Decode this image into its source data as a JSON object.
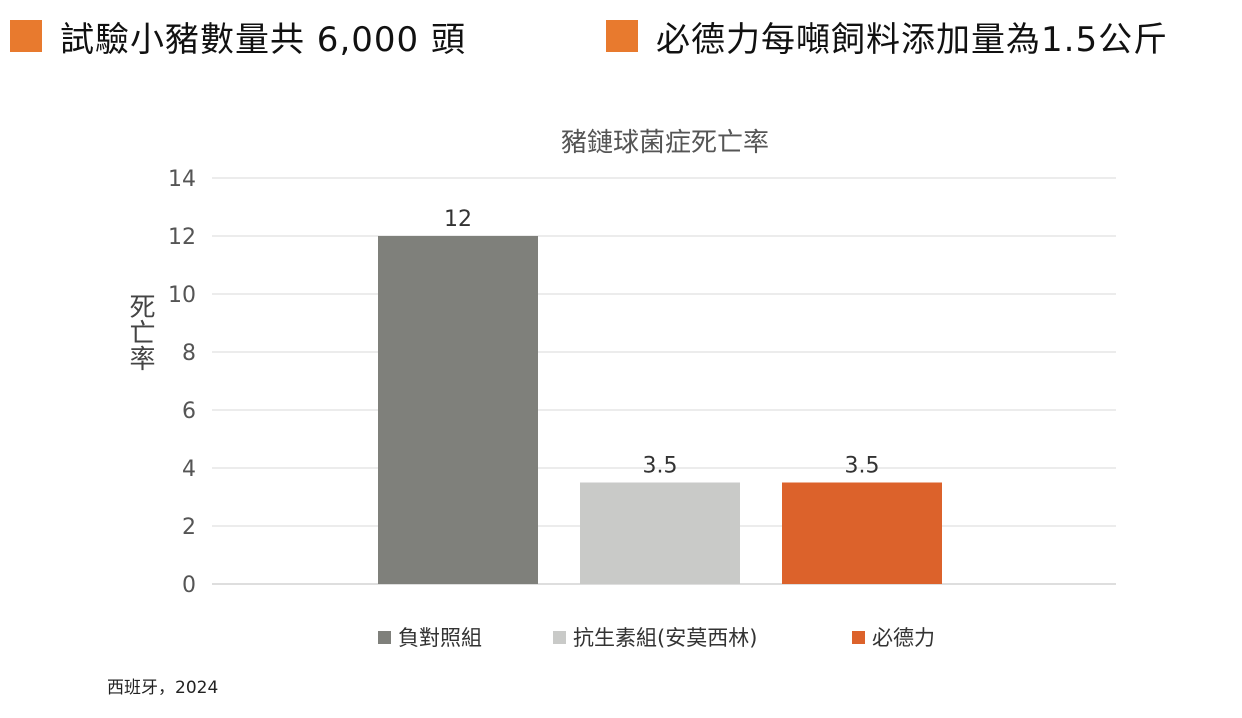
{
  "headlines": [
    {
      "text": "試驗小豬數量共 6,000 頭",
      "swatch_color": "#e87a2e"
    },
    {
      "text": "必德力每噸飼料添加量為1.5公斤",
      "swatch_color": "#e87a2e"
    }
  ],
  "source_note": "西班牙，2024",
  "chart_data": {
    "type": "bar",
    "title": "豬鏈球菌症死亡率",
    "ylabel": "死亡率",
    "xlabel": "",
    "ylim": [
      0,
      14
    ],
    "yticks": [
      "0",
      "2",
      "4",
      "6",
      "8",
      "10",
      "12",
      "14"
    ],
    "grid": true,
    "legend_position": "bottom",
    "categories": [
      "負對照組",
      "抗生素組(安莫西林)",
      "必德力"
    ],
    "values": [
      12,
      3.5,
      3.5
    ],
    "data_labels": [
      "12",
      "3.5",
      "3.5"
    ],
    "colors": [
      "#7f807b",
      "#c9cac8",
      "#dc622b"
    ]
  }
}
